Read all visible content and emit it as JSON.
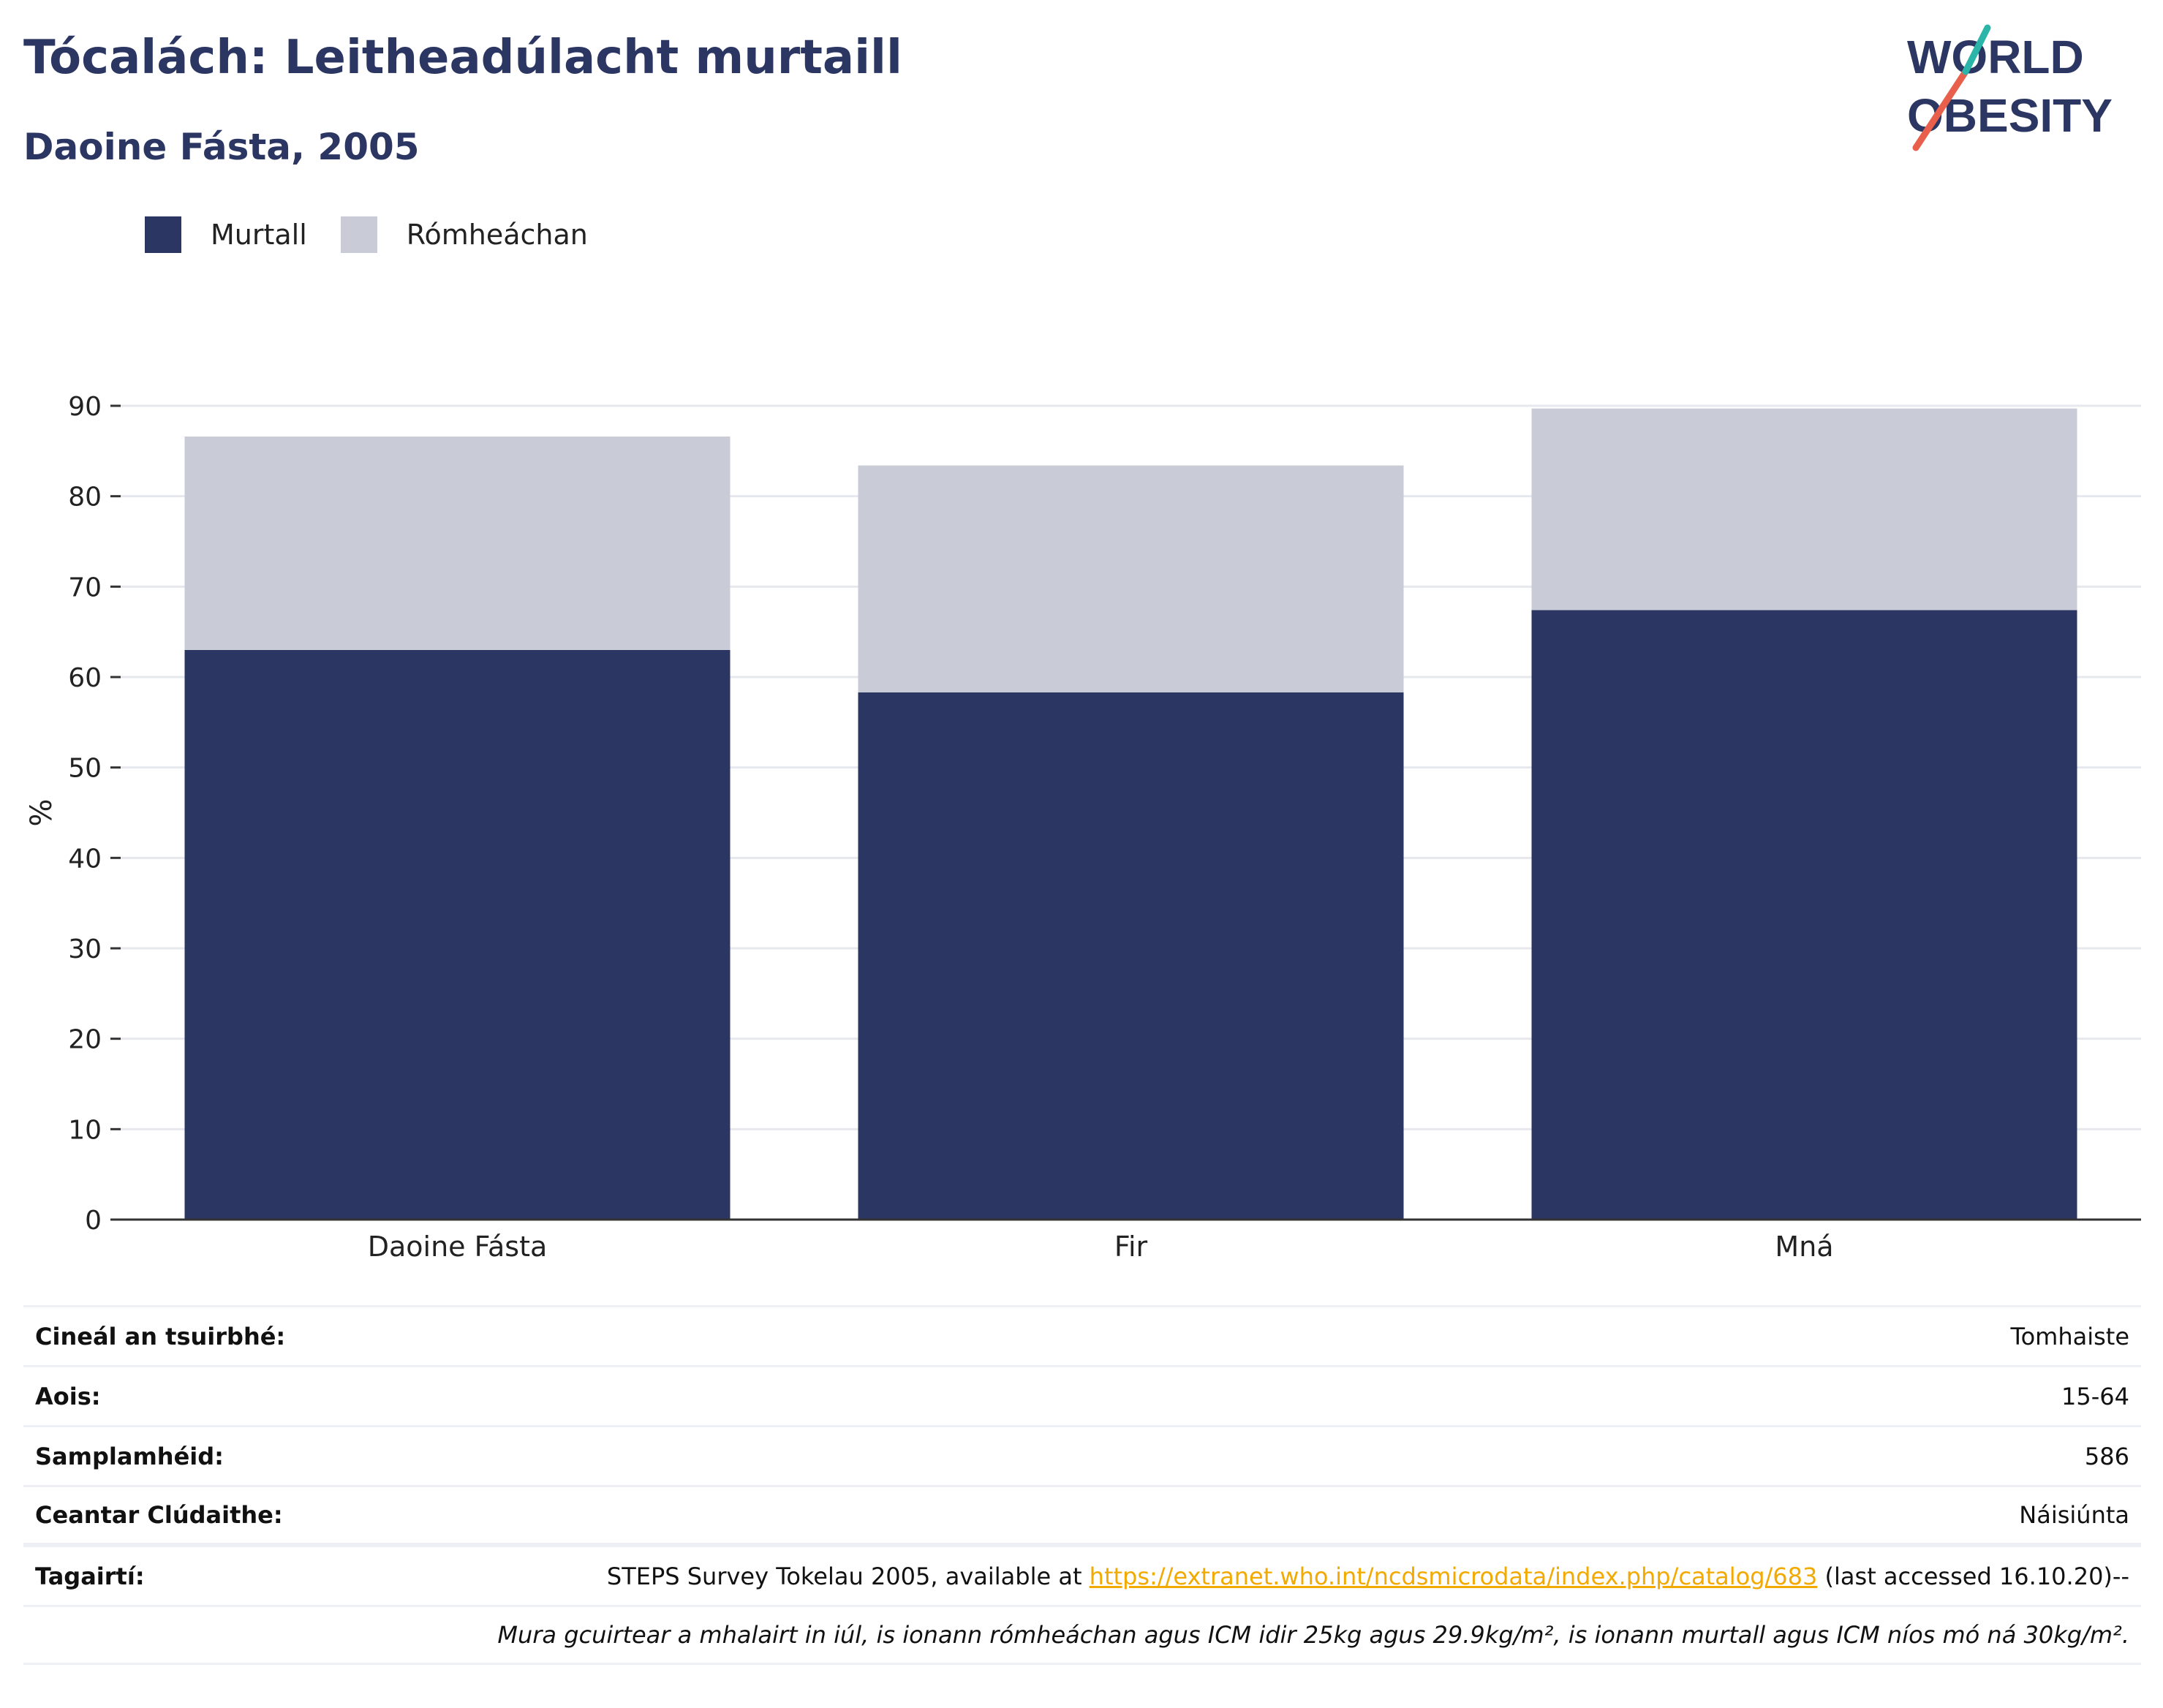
{
  "header": {
    "title": "Tócalách: Leitheadúlacht murtaill",
    "subtitle": "Daoine Fásta, 2005"
  },
  "logo": {
    "line1": "WORLD",
    "line2": "OBESITY"
  },
  "colors": {
    "murtall": "#2b3663",
    "romheachan": "#c9cbd6",
    "title": "#2b3663",
    "link": "#f2a900"
  },
  "chart_data": {
    "type": "bar",
    "stacked": true,
    "categories": [
      "Daoine Fásta",
      "Fir",
      "Mná"
    ],
    "series": [
      {
        "name": "Murtall",
        "values": [
          63.0,
          58.3,
          67.4
        ]
      },
      {
        "name": "Rómheáchan",
        "values": [
          23.6,
          25.1,
          22.3
        ]
      }
    ],
    "ylabel": "%",
    "xlabel": "",
    "ylim": [
      0,
      90
    ],
    "yticks": [
      0,
      10,
      20,
      30,
      40,
      50,
      60,
      70,
      80,
      90
    ],
    "grid": true,
    "legend_position": "top-left"
  },
  "info": {
    "rows": [
      {
        "label": "Cineál an tsuirbhé:",
        "value": "Tomhaiste"
      },
      {
        "label": "Aois:",
        "value": "15-64"
      },
      {
        "label": "Samplamhéid:",
        "value": "586"
      },
      {
        "label": "Ceantar Clúdaithe:",
        "value": "Náisiúnta"
      }
    ],
    "reference": {
      "label": "Tagairtí:",
      "prefix": "STEPS Survey Tokelau 2005, available at ",
      "link": "https://extranet.who.int/ncdsmicrodata/index.php/catalog/683",
      "suffix": " (last accessed 16.10.20)--"
    },
    "note": "Mura gcuirtear a mhalairt in iúl, is ionann rómheáchan agus ICM idir 25kg agus 29.9kg/m², is ionann murtall agus ICM níos mó ná 30kg/m²."
  }
}
